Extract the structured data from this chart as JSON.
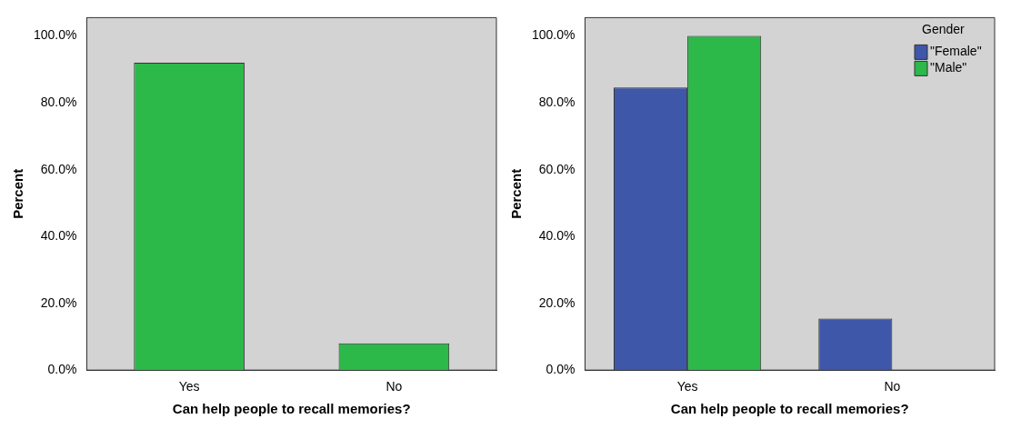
{
  "chart_data": [
    {
      "type": "bar",
      "xlabel": "Can help people to recall memories?",
      "ylabel": "Percent",
      "categories": [
        "Yes",
        "No"
      ],
      "values": [
        92,
        8
      ],
      "color": "#2db84a",
      "ylim": [
        0,
        105.5
      ],
      "yticks": [
        {
          "value": 0,
          "label": "0.0%"
        },
        {
          "value": 20,
          "label": "20.0%"
        },
        {
          "value": 40,
          "label": "40.0%"
        },
        {
          "value": 60,
          "label": "60.0%"
        },
        {
          "value": 80,
          "label": "80.0%"
        },
        {
          "value": 100,
          "label": "100.0%"
        }
      ],
      "grid": false,
      "legend": false
    },
    {
      "type": "bar",
      "xlabel": "Can help people to recall memories?",
      "ylabel": "Percent",
      "categories": [
        "Yes",
        "No"
      ],
      "legend_title": "Gender",
      "legend": "top right",
      "series": [
        {
          "name": "\"Female\"",
          "color": "#3f57a8",
          "values": [
            84.6,
            15.4
          ]
        },
        {
          "name": "\"Male\"",
          "color": "#2db84a",
          "values": [
            100,
            0
          ]
        }
      ],
      "ylim": [
        0,
        105.5
      ],
      "yticks": [
        {
          "value": 0,
          "label": "0.0%"
        },
        {
          "value": 20,
          "label": "20.0%"
        },
        {
          "value": 40,
          "label": "40.0%"
        },
        {
          "value": 60,
          "label": "60.0%"
        },
        {
          "value": 80,
          "label": "80.0%"
        },
        {
          "value": 100,
          "label": "100.0%"
        }
      ],
      "grid": false
    }
  ]
}
